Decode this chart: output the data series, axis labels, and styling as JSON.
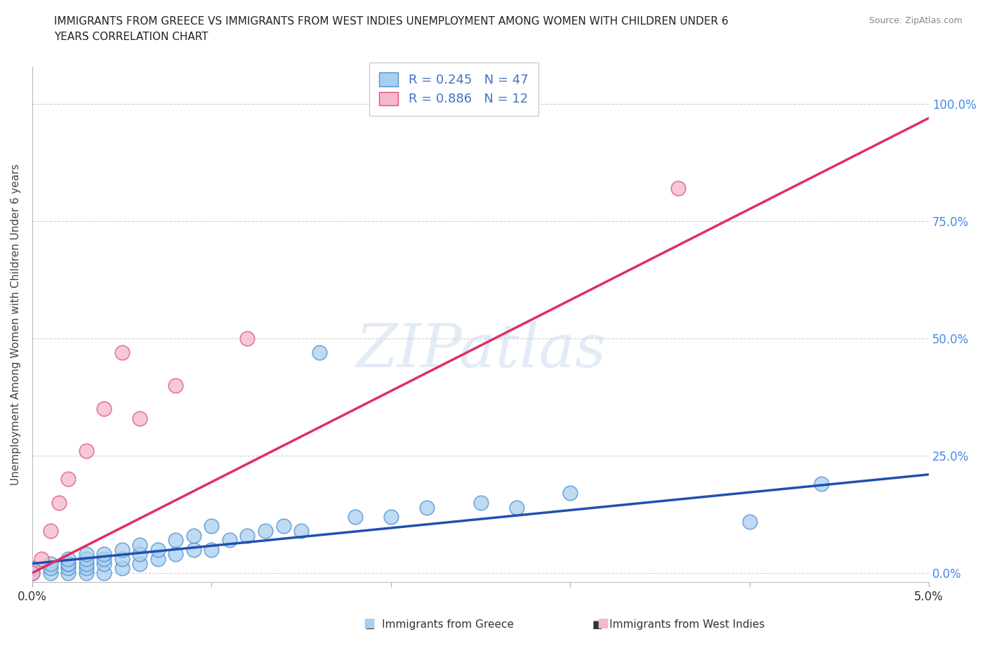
{
  "title_line1": "IMMIGRANTS FROM GREECE VS IMMIGRANTS FROM WEST INDIES UNEMPLOYMENT AMONG WOMEN WITH CHILDREN UNDER 6",
  "title_line2": "YEARS CORRELATION CHART",
  "source": "Source: ZipAtlas.com",
  "ylabel": "Unemployment Among Women with Children Under 6 years",
  "ytick_labels": [
    "0.0%",
    "25.0%",
    "50.0%",
    "75.0%",
    "100.0%"
  ],
  "ytick_values": [
    0.0,
    0.25,
    0.5,
    0.75,
    1.0
  ],
  "xlim": [
    0.0,
    0.05
  ],
  "ylim": [
    -0.02,
    1.08
  ],
  "legend_r1": "R = 0.245",
  "legend_n1": "N = 47",
  "legend_r2": "R = 0.886",
  "legend_n2": "N = 12",
  "legend_label1": "Immigrants from Greece",
  "legend_label2": "Immigrants from West Indies",
  "color_greece_fill": "#a8cff0",
  "color_greece_edge": "#5090d0",
  "color_westindies_fill": "#f5b8cc",
  "color_westindies_edge": "#e05080",
  "color_line_greece": "#2050b0",
  "color_line_westindies": "#e03060",
  "color_rvalue": "#4472c4",
  "watermark": "ZIPatlas",
  "greece_x": [
    0.0,
    0.0,
    0.001,
    0.001,
    0.001,
    0.002,
    0.002,
    0.002,
    0.002,
    0.002,
    0.003,
    0.003,
    0.003,
    0.003,
    0.003,
    0.004,
    0.004,
    0.004,
    0.004,
    0.005,
    0.005,
    0.005,
    0.006,
    0.006,
    0.006,
    0.007,
    0.007,
    0.008,
    0.008,
    0.009,
    0.009,
    0.01,
    0.01,
    0.011,
    0.012,
    0.013,
    0.014,
    0.015,
    0.016,
    0.018,
    0.02,
    0.022,
    0.025,
    0.027,
    0.03,
    0.04,
    0.044
  ],
  "greece_y": [
    0.0,
    0.01,
    0.0,
    0.01,
    0.02,
    0.0,
    0.01,
    0.02,
    0.02,
    0.03,
    0.0,
    0.01,
    0.02,
    0.03,
    0.04,
    0.0,
    0.02,
    0.03,
    0.04,
    0.01,
    0.03,
    0.05,
    0.02,
    0.04,
    0.06,
    0.03,
    0.05,
    0.04,
    0.07,
    0.05,
    0.08,
    0.05,
    0.1,
    0.07,
    0.08,
    0.09,
    0.1,
    0.09,
    0.47,
    0.12,
    0.12,
    0.14,
    0.15,
    0.14,
    0.17,
    0.11,
    0.19
  ],
  "westindies_x": [
    0.0,
    0.0005,
    0.001,
    0.0015,
    0.002,
    0.003,
    0.004,
    0.005,
    0.006,
    0.008,
    0.012,
    0.036
  ],
  "westindies_y": [
    0.0,
    0.03,
    0.09,
    0.15,
    0.2,
    0.26,
    0.35,
    0.47,
    0.33,
    0.4,
    0.5,
    0.82
  ],
  "greece_line_x": [
    0.0,
    0.05
  ],
  "greece_line_y": [
    0.02,
    0.21
  ],
  "westindies_line_x": [
    0.0,
    0.05
  ],
  "westindies_line_y": [
    0.0,
    0.97
  ],
  "background_color": "#ffffff",
  "grid_color": "#bbbbbb"
}
